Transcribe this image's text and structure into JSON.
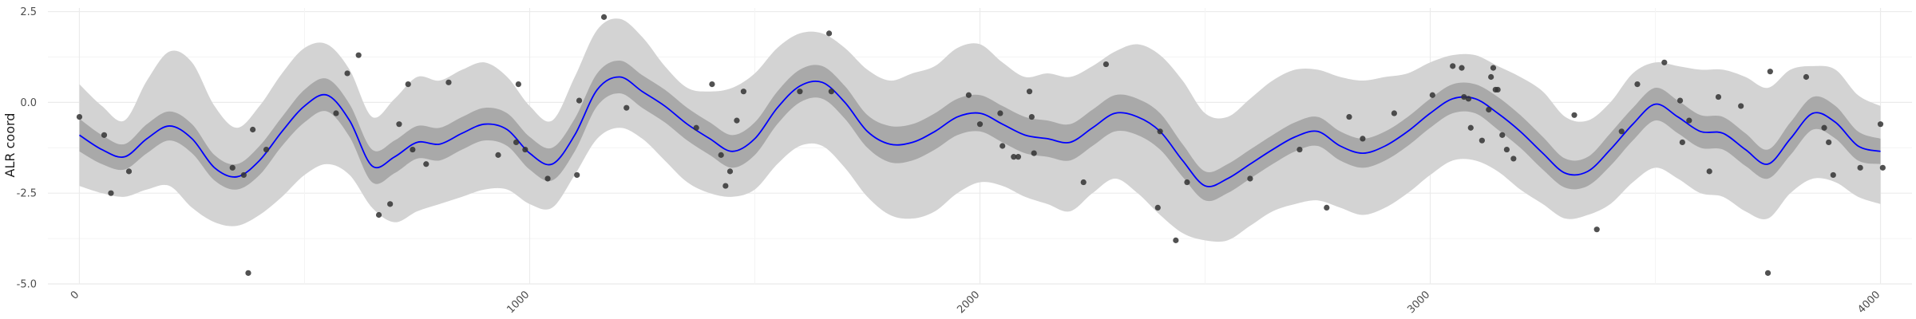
{
  "chart_data": {
    "type": "line",
    "title": "",
    "xlabel": "",
    "ylabel": "ALR coord",
    "xlim": [
      -70,
      4070
    ],
    "ylim": [
      -5.0,
      2.6
    ],
    "grid": true,
    "x_ticks": [
      0,
      1000,
      2000,
      3000,
      4000
    ],
    "x_tick_labels": [
      "0",
      "1000",
      "2000",
      "3000",
      "4000"
    ],
    "y_ticks": [
      2.5,
      0.0,
      -2.5,
      -5.0
    ],
    "y_tick_labels": [
      "2.5",
      "0.0",
      "-2.5",
      "-5.0"
    ],
    "colors": {
      "mean_line": "#0000ff",
      "inner_band": "#a9a9a9",
      "outer_band": "#d3d3d3",
      "points": "#333333",
      "grid": "#ebebeb"
    },
    "series": [
      {
        "role": "mean",
        "x": [
          0,
          50,
          100,
          150,
          200,
          250,
          300,
          350,
          400,
          450,
          500,
          550,
          600,
          650,
          700,
          750,
          800,
          850,
          900,
          950,
          1000,
          1050,
          1100,
          1150,
          1200,
          1250,
          1300,
          1350,
          1400,
          1450,
          1500,
          1550,
          1600,
          1650,
          1700,
          1750,
          1800,
          1850,
          1900,
          1950,
          2000,
          2050,
          2100,
          2150,
          2200,
          2250,
          2300,
          2350,
          2400,
          2450,
          2500,
          2550,
          2600,
          2650,
          2700,
          2750,
          2800,
          2850,
          2900,
          2950,
          3000,
          3050,
          3100,
          3150,
          3200,
          3250,
          3300,
          3350,
          3400,
          3450,
          3500,
          3550,
          3600,
          3650,
          3700,
          3750,
          3800,
          3850,
          3900,
          3950,
          4000
        ],
        "y": [
          -0.9,
          -1.3,
          -1.5,
          -1.0,
          -0.65,
          -1.0,
          -1.8,
          -2.05,
          -1.6,
          -0.8,
          -0.1,
          0.2,
          -0.5,
          -1.75,
          -1.5,
          -1.1,
          -1.15,
          -0.85,
          -0.6,
          -0.75,
          -1.4,
          -1.7,
          -0.9,
          0.35,
          0.7,
          0.3,
          -0.1,
          -0.6,
          -1.0,
          -1.35,
          -1.0,
          -0.15,
          0.45,
          0.55,
          0.0,
          -0.8,
          -1.15,
          -1.1,
          -0.8,
          -0.4,
          -0.3,
          -0.6,
          -0.9,
          -1.0,
          -1.1,
          -0.7,
          -0.3,
          -0.4,
          -0.8,
          -1.6,
          -2.3,
          -2.1,
          -1.7,
          -1.3,
          -0.95,
          -0.8,
          -1.2,
          -1.4,
          -1.2,
          -0.8,
          -0.3,
          0.1,
          0.1,
          -0.3,
          -0.8,
          -1.4,
          -1.95,
          -1.9,
          -1.3,
          -0.6,
          -0.05,
          -0.4,
          -0.8,
          -0.85,
          -1.3,
          -1.7,
          -1.0,
          -0.3,
          -0.55,
          -1.2,
          -1.35
        ]
      },
      {
        "role": "inner_band",
        "x": [
          0,
          50,
          100,
          150,
          200,
          250,
          300,
          350,
          400,
          450,
          500,
          550,
          600,
          650,
          700,
          750,
          800,
          850,
          900,
          950,
          1000,
          1050,
          1100,
          1150,
          1200,
          1250,
          1300,
          1350,
          1400,
          1450,
          1500,
          1550,
          1600,
          1650,
          1700,
          1750,
          1800,
          1850,
          1900,
          1950,
          2000,
          2050,
          2100,
          2150,
          2200,
          2250,
          2300,
          2350,
          2400,
          2450,
          2500,
          2550,
          2600,
          2650,
          2700,
          2750,
          2800,
          2850,
          2900,
          2950,
          3000,
          3050,
          3100,
          3150,
          3200,
          3250,
          3300,
          3350,
          3400,
          3450,
          3500,
          3550,
          3600,
          3650,
          3700,
          3750,
          3800,
          3850,
          3900,
          3950,
          4000
        ],
        "lower": [
          -1.35,
          -1.7,
          -1.85,
          -1.4,
          -1.05,
          -1.4,
          -2.15,
          -2.4,
          -2.0,
          -1.2,
          -0.55,
          -0.25,
          -0.95,
          -2.2,
          -1.95,
          -1.55,
          -1.6,
          -1.3,
          -1.05,
          -1.2,
          -1.85,
          -2.15,
          -1.35,
          -0.1,
          0.25,
          -0.15,
          -0.55,
          -1.05,
          -1.45,
          -1.8,
          -1.45,
          -0.6,
          0.0,
          0.1,
          -0.45,
          -1.25,
          -1.65,
          -1.6,
          -1.3,
          -0.9,
          -0.8,
          -1.1,
          -1.4,
          -1.5,
          -1.6,
          -1.2,
          -0.8,
          -0.9,
          -1.3,
          -2.05,
          -2.7,
          -2.5,
          -2.1,
          -1.7,
          -1.35,
          -1.2,
          -1.6,
          -1.8,
          -1.6,
          -1.2,
          -0.7,
          -0.3,
          -0.3,
          -0.75,
          -1.25,
          -1.85,
          -2.35,
          -2.3,
          -1.75,
          -1.05,
          -0.5,
          -0.85,
          -1.25,
          -1.3,
          -1.75,
          -2.1,
          -1.45,
          -0.75,
          -1.0,
          -1.6,
          -1.7
        ],
        "upper": [
          -0.45,
          -0.9,
          -1.15,
          -0.6,
          -0.25,
          -0.6,
          -1.45,
          -1.7,
          -1.2,
          -0.4,
          0.35,
          0.65,
          -0.05,
          -1.3,
          -1.05,
          -0.65,
          -0.7,
          -0.4,
          -0.15,
          -0.3,
          -0.95,
          -1.25,
          -0.45,
          0.8,
          1.15,
          0.75,
          0.35,
          -0.15,
          -0.55,
          -0.9,
          -0.55,
          0.3,
          0.9,
          1.0,
          0.45,
          -0.35,
          -0.65,
          -0.6,
          -0.3,
          0.1,
          0.2,
          -0.1,
          -0.4,
          -0.5,
          -0.6,
          -0.2,
          0.2,
          0.1,
          -0.3,
          -1.15,
          -1.9,
          -1.7,
          -1.3,
          -0.9,
          -0.55,
          -0.4,
          -0.8,
          -1.0,
          -0.8,
          -0.4,
          0.1,
          0.5,
          0.5,
          0.15,
          -0.35,
          -0.95,
          -1.55,
          -1.5,
          -0.85,
          -0.15,
          0.4,
          0.05,
          -0.35,
          -0.4,
          -0.85,
          -1.3,
          -0.55,
          0.15,
          -0.1,
          -0.8,
          -1.0
        ]
      },
      {
        "role": "outer_band",
        "x": [
          0,
          50,
          100,
          150,
          200,
          250,
          300,
          350,
          400,
          450,
          500,
          550,
          600,
          650,
          700,
          750,
          800,
          850,
          900,
          950,
          1000,
          1050,
          1100,
          1150,
          1200,
          1250,
          1300,
          1350,
          1400,
          1450,
          1500,
          1550,
          1600,
          1650,
          1700,
          1750,
          1800,
          1850,
          1900,
          1950,
          2000,
          2050,
          2100,
          2150,
          2200,
          2250,
          2300,
          2350,
          2400,
          2450,
          2500,
          2550,
          2600,
          2650,
          2700,
          2750,
          2800,
          2850,
          2900,
          2950,
          3000,
          3050,
          3100,
          3150,
          3200,
          3250,
          3300,
          3350,
          3400,
          3450,
          3500,
          3550,
          3600,
          3650,
          3700,
          3750,
          3800,
          3850,
          3900,
          3950,
          4000
        ],
        "lower": [
          -2.3,
          -2.5,
          -2.6,
          -2.4,
          -2.3,
          -2.9,
          -3.3,
          -3.4,
          -3.1,
          -2.6,
          -2.0,
          -1.7,
          -2.0,
          -2.9,
          -3.3,
          -3.0,
          -2.8,
          -2.6,
          -2.4,
          -2.4,
          -2.8,
          -2.9,
          -2.0,
          -1.0,
          -0.7,
          -1.0,
          -1.6,
          -2.2,
          -2.5,
          -2.6,
          -2.4,
          -1.7,
          -1.2,
          -1.2,
          -1.8,
          -2.6,
          -3.1,
          -3.2,
          -3.0,
          -2.5,
          -2.2,
          -2.3,
          -2.6,
          -2.8,
          -3.0,
          -2.5,
          -2.1,
          -2.5,
          -3.1,
          -3.6,
          -3.8,
          -3.8,
          -3.4,
          -3.0,
          -2.8,
          -2.7,
          -2.9,
          -3.1,
          -2.9,
          -2.5,
          -2.0,
          -1.6,
          -1.6,
          -1.9,
          -2.4,
          -2.8,
          -3.2,
          -3.1,
          -2.8,
          -2.2,
          -1.8,
          -2.1,
          -2.5,
          -2.6,
          -3.0,
          -3.2,
          -2.5,
          -2.1,
          -2.2,
          -2.6,
          -2.8
        ],
        "upper": [
          0.5,
          -0.1,
          -0.5,
          0.6,
          1.4,
          1.1,
          -0.1,
          -0.7,
          -0.1,
          0.8,
          1.5,
          1.6,
          0.9,
          -0.4,
          0.1,
          0.7,
          0.6,
          0.9,
          1.1,
          0.7,
          -0.1,
          -0.5,
          0.7,
          2.0,
          2.3,
          1.8,
          1.0,
          0.4,
          0.3,
          0.4,
          0.8,
          1.5,
          1.9,
          1.9,
          1.5,
          0.9,
          0.6,
          0.8,
          1.0,
          1.5,
          1.6,
          1.1,
          0.7,
          0.8,
          0.7,
          1.0,
          1.4,
          1.6,
          1.3,
          0.6,
          -0.3,
          -0.4,
          0.1,
          0.6,
          0.9,
          0.9,
          0.7,
          0.6,
          0.7,
          0.8,
          1.1,
          1.3,
          1.3,
          1.0,
          0.7,
          0.3,
          -0.4,
          -0.5,
          0.0,
          0.8,
          1.1,
          1.0,
          0.9,
          0.9,
          0.7,
          0.4,
          0.9,
          1.0,
          0.9,
          0.2,
          -0.1
        ]
      },
      {
        "role": "observations",
        "x": [
          0,
          55,
          70,
          110,
          340,
          365,
          375,
          385,
          415,
          570,
          595,
          620,
          665,
          690,
          710,
          730,
          740,
          770,
          820,
          930,
          970,
          975,
          990,
          1040,
          1105,
          1110,
          1165,
          1215,
          1370,
          1405,
          1425,
          1435,
          1445,
          1460,
          1475,
          1600,
          1665,
          1670,
          1975,
          2000,
          2045,
          2050,
          2075,
          2085,
          2110,
          2115,
          2120,
          2230,
          2280,
          2395,
          2400,
          2435,
          2460,
          2600,
          2710,
          2770,
          2820,
          2850,
          2920,
          3005,
          3050,
          3070,
          3075,
          3085,
          3090,
          3115,
          3130,
          3135,
          3140,
          3145,
          3150,
          3160,
          3170,
          3185,
          3320,
          3370,
          3425,
          3460,
          3520,
          3555,
          3560,
          3575,
          3620,
          3640,
          3690,
          3750,
          3755,
          3835,
          3875,
          3885,
          3895,
          3955,
          4000,
          4005
        ],
        "y": [
          -0.4,
          -0.9,
          -2.5,
          -1.9,
          -1.8,
          -2.0,
          -4.7,
          -0.75,
          -1.3,
          -0.3,
          0.8,
          1.3,
          -3.1,
          -2.8,
          -0.6,
          0.5,
          -1.3,
          -1.7,
          0.55,
          -1.45,
          -1.1,
          0.5,
          -1.3,
          -2.1,
          -2.0,
          0.05,
          2.35,
          -0.15,
          -0.7,
          0.5,
          -1.45,
          -2.3,
          -1.9,
          -0.5,
          0.3,
          0.3,
          1.9,
          0.3,
          0.2,
          -0.6,
          -0.3,
          -1.2,
          -1.5,
          -1.5,
          0.3,
          -0.4,
          -1.4,
          -2.2,
          1.05,
          -2.9,
          -0.8,
          -3.8,
          -2.2,
          -2.1,
          -1.3,
          -2.9,
          -0.4,
          -1.0,
          -0.3,
          0.2,
          1.0,
          0.95,
          0.15,
          0.1,
          -0.7,
          -1.05,
          -0.2,
          0.7,
          0.95,
          0.35,
          0.35,
          -0.9,
          -1.3,
          -1.55,
          -0.35,
          -3.5,
          -0.8,
          0.5,
          1.1,
          0.05,
          -1.1,
          -0.5,
          -1.9,
          0.15,
          -0.1,
          -4.7,
          0.85,
          0.7,
          -0.7,
          -1.1,
          -2.0,
          -1.8,
          -0.6,
          -1.8
        ]
      }
    ]
  }
}
